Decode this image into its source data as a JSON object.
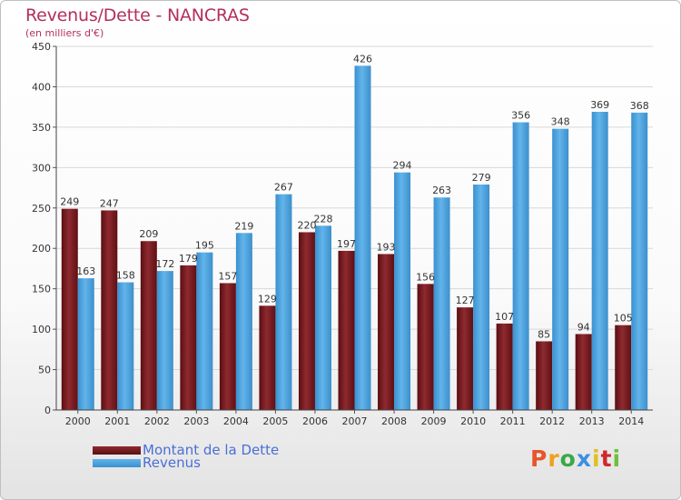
{
  "title": "Revenus/Dette - NANCRAS",
  "subtitle": "(en milliers d'€)",
  "legend": {
    "debt_label": "Montant de la Dette",
    "revenue_label": "Revenus"
  },
  "logo": {
    "text": "Proxiti"
  },
  "colors": {
    "debt": "#7a1a1f",
    "revenue": "#4aa3e0",
    "title": "#b3305a",
    "legend_text": "#4a6fd6"
  },
  "chart_data": {
    "type": "bar",
    "title": "Revenus/Dette - NANCRAS",
    "ylabel": "(en milliers d'€)",
    "xlabel": "",
    "ylim": [
      0,
      450
    ],
    "yticks": [
      0,
      50,
      100,
      150,
      200,
      250,
      300,
      350,
      400,
      450
    ],
    "grid": true,
    "categories": [
      "2000",
      "2001",
      "2002",
      "2003",
      "2004",
      "2005",
      "2006",
      "2007",
      "2008",
      "2009",
      "2010",
      "2011",
      "2012",
      "2013",
      "2014"
    ],
    "series": [
      {
        "name": "Montant de la Dette",
        "values": [
          249,
          247,
          209,
          179,
          157,
          129,
          220,
          197,
          193,
          156,
          127,
          107,
          85,
          94,
          105
        ]
      },
      {
        "name": "Revenus",
        "values": [
          163,
          158,
          172,
          195,
          219,
          267,
          228,
          426,
          294,
          263,
          279,
          356,
          348,
          369,
          368
        ]
      }
    ]
  }
}
